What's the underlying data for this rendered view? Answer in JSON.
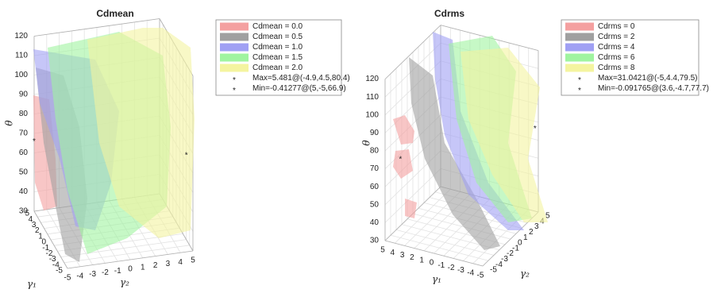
{
  "chart_data": [
    {
      "type": "isosurface",
      "title": "Cdmean",
      "xlabel": "γ₁",
      "ylabel": "γ₂",
      "zlabel": "θ",
      "xlim": [
        -5,
        5
      ],
      "ylim": [
        -5,
        5
      ],
      "zlim": [
        30,
        120
      ],
      "xticks": [
        -5,
        -4,
        -3,
        -2,
        -1,
        0,
        1,
        2,
        3,
        4,
        5
      ],
      "yticks": [
        -5,
        -4,
        -3,
        -2,
        -1,
        0,
        1,
        2,
        3,
        4,
        5
      ],
      "zticks": [
        30,
        40,
        50,
        60,
        70,
        80,
        90,
        100,
        110,
        120
      ],
      "series": [
        {
          "name": "Cdmean = 0.0",
          "color": "#f4a0a0"
        },
        {
          "name": "Cdmean = 0.5",
          "color": "#a0a0a0"
        },
        {
          "name": "Cdmean = 1.0",
          "color": "#a0a0f4"
        },
        {
          "name": "Cdmean = 1.5",
          "color": "#a0f4a0"
        },
        {
          "name": "Cdmean = 2.0",
          "color": "#f4f4a0"
        }
      ],
      "points": [
        {
          "name": "Max=5.481@(-4.9,4.5,80.4)",
          "color": "#0000ff",
          "x": -4.9,
          "y": 4.5,
          "z": 80.4
        },
        {
          "name": "Min=-0.41277@(5,-5,66.9)",
          "color": "#ff0000",
          "x": 5,
          "y": -5,
          "z": 66.9
        }
      ]
    },
    {
      "type": "isosurface",
      "title": "Cdrms",
      "xlabel": "γ₁",
      "ylabel": "γ₂",
      "zlabel": "θ",
      "xlim": [
        -5,
        5
      ],
      "ylim": [
        -5,
        5
      ],
      "zlim": [
        30,
        120
      ],
      "xticks": [
        -5,
        -4,
        -3,
        -2,
        -1,
        0,
        1,
        2,
        3,
        4,
        5
      ],
      "yticks": [
        -5,
        -4,
        -3,
        -2,
        -1,
        0,
        1,
        2,
        3,
        4,
        5
      ],
      "zticks": [
        30,
        40,
        50,
        60,
        70,
        80,
        90,
        100,
        110,
        120
      ],
      "series": [
        {
          "name": "Cdrms = 0",
          "color": "#f4a0a0"
        },
        {
          "name": "Cdrms = 2",
          "color": "#a0a0a0"
        },
        {
          "name": "Cdrms = 4",
          "color": "#a0a0f4"
        },
        {
          "name": "Cdrms = 6",
          "color": "#a0f4a0"
        },
        {
          "name": "Cdrms = 8",
          "color": "#f4f4a0"
        }
      ],
      "points": [
        {
          "name": "Max=31.0421@(-5,4.4,79.5)",
          "color": "#0000ff",
          "x": -5,
          "y": 4.4,
          "z": 79.5
        },
        {
          "name": "Min=-0.091765@(3.6,-4.7,77.7)",
          "color": "#ff0000",
          "x": 3.6,
          "y": -4.7,
          "z": 77.7
        }
      ]
    }
  ]
}
